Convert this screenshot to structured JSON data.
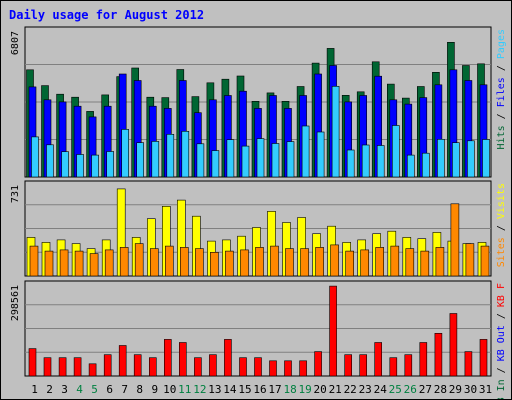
{
  "colors": {
    "background": "#c0c0c0",
    "grid": "#808080",
    "hits": "#006633",
    "files": "#0000ff",
    "pages": "#33ccff",
    "visits": "#ffff00",
    "sites": "#ff8800",
    "kbin": "#006633",
    "kbout": "#0000ff",
    "kbf": "#ff0000",
    "title": "#0000ff",
    "weekend": "#008040",
    "weekday": "#000000"
  },
  "chart_data": {
    "type": "bar",
    "title": "Daily usage for August 2012",
    "categories": [
      "1",
      "2",
      "3",
      "4",
      "5",
      "6",
      "7",
      "8",
      "9",
      "10",
      "11",
      "12",
      "13",
      "14",
      "15",
      "16",
      "17",
      "18",
      "19",
      "20",
      "21",
      "22",
      "23",
      "24",
      "25",
      "26",
      "27",
      "28",
      "29",
      "30",
      "31"
    ],
    "weekend_days": [
      "4",
      "5",
      "11",
      "12",
      "18",
      "19",
      "25",
      "26"
    ],
    "panels": [
      {
        "id": "top",
        "max_label": "6807",
        "ymax": 6807,
        "right_legend": [
          "Pages",
          "Files",
          "Hits"
        ],
        "series": [
          {
            "name": "Hits",
            "values": [
              5000,
              4260,
              3860,
              3720,
              3060,
              3830,
              4680,
              5080,
              3720,
              3700,
              5010,
              3750,
              4390,
              4560,
              4710,
              3530,
              3920,
              3530,
              4220,
              5310,
              5998,
              3810,
              3970,
              5370,
              4330,
              3680,
              4220,
              4880,
              6280,
              5200,
              5280
            ]
          },
          {
            "name": "Files",
            "values": [
              4200,
              3600,
              3500,
              3300,
              2800,
              3300,
              4800,
              4500,
              3300,
              3200,
              4500,
              3000,
              3600,
              3800,
              4000,
              3200,
              3800,
              3200,
              3800,
              4800,
              5200,
              3500,
              3800,
              4700,
              3600,
              3400,
              3700,
              4300,
              5000,
              4500,
              4300
            ]
          },
          {
            "name": "Pages",
            "values": [
              1870,
              1500,
              1180,
              1050,
              1020,
              1190,
              2220,
              1600,
              1660,
              1990,
              2130,
              1550,
              1230,
              1740,
              1440,
              1790,
              1560,
              1650,
              2380,
              2100,
              4230,
              1260,
              1490,
              1470,
              2400,
              1020,
              1110,
              1760,
              1600,
              1690,
              1750
            ]
          }
        ]
      },
      {
        "id": "middle",
        "max_label": "731",
        "ymax": 731,
        "right_legend": [
          "Visits",
          "Sites"
        ],
        "series": [
          {
            "name": "Visits",
            "values": [
              310,
              270,
              290,
              260,
              220,
              290,
              700,
              310,
              460,
              560,
              610,
              480,
              280,
              290,
              320,
              390,
              520,
              430,
              470,
              340,
              400,
              270,
              290,
              340,
              360,
              310,
              300,
              350,
              280,
              260,
              270
            ]
          },
          {
            "name": "Sites",
            "values": [
              240,
              200,
              210,
              200,
              180,
              210,
              230,
              260,
              220,
              240,
              230,
              220,
              190,
              200,
              210,
              230,
              240,
              220,
              220,
              230,
              250,
              200,
              210,
              230,
              240,
              220,
              200,
              230,
              580,
              260,
              240
            ]
          }
        ]
      },
      {
        "id": "bottom",
        "max_label": "298561",
        "ymax": 298561,
        "right_legend": [
          "KB F",
          "KB Out",
          "KB In"
        ],
        "series": [
          {
            "name": "KB F",
            "values": [
              90000,
              60000,
              60000,
              60000,
              40000,
              70000,
              100000,
              70000,
              60000,
              120000,
              110000,
              60000,
              70000,
              120000,
              60000,
              60000,
              50000,
              50000,
              50000,
              80000,
              295000,
              70000,
              70000,
              110000,
              60000,
              70000,
              110000,
              140000,
              205000,
              80000,
              120000
            ]
          }
        ]
      }
    ]
  }
}
